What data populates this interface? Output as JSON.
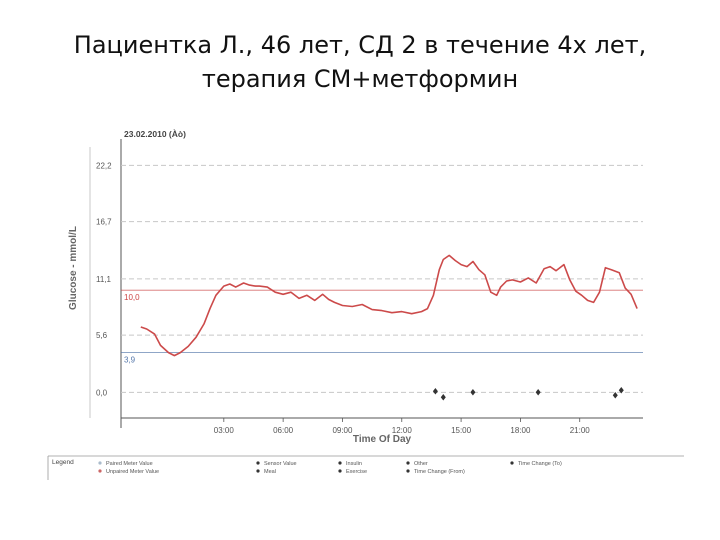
{
  "slide": {
    "title_line1": "Пациентка Л., 46 лет, СД 2  в течение 4х лет,",
    "title_line2": "терапия СМ+метформин"
  },
  "chart_data": {
    "type": "line",
    "title": "23.02.2010 (Àò)",
    "ylabel": "Glucose - mmol/L",
    "xlabel": "Time Of Day",
    "xlim": [
      -2.2,
      24.2
    ],
    "ylim": [
      -2.5,
      24.0
    ],
    "x_ticks": [
      {
        "value": 3,
        "label": "03:00"
      },
      {
        "value": 6,
        "label": "06:00"
      },
      {
        "value": 9,
        "label": "09:00"
      },
      {
        "value": 12,
        "label": "12:00"
      },
      {
        "value": 15,
        "label": "15:00"
      },
      {
        "value": 18,
        "label": "18:00"
      },
      {
        "value": 21,
        "label": "21:00"
      }
    ],
    "y_ticks": [
      {
        "value": 0,
        "label": "0,0"
      },
      {
        "value": 5.6,
        "label": "5,6"
      },
      {
        "value": 11.1,
        "label": "11,1"
      },
      {
        "value": 16.7,
        "label": "16,7"
      },
      {
        "value": 22.2,
        "label": "22,2"
      }
    ],
    "target_lines": [
      {
        "value": 10.0,
        "label": "10,0",
        "color": "#cc4444"
      },
      {
        "value": 3.9,
        "label": "3,9",
        "color": "#5577aa"
      }
    ],
    "series": [
      {
        "color": "#cc4a4a",
        "x": [
          -1.2,
          -0.9,
          -0.5,
          -0.2,
          0.2,
          0.5,
          0.8,
          1.2,
          1.6,
          2.0,
          2.3,
          2.6,
          3.0,
          3.3,
          3.6,
          4.0,
          4.3,
          4.6,
          4.8,
          5.2,
          5.6,
          6.0,
          6.4,
          6.8,
          7.2,
          7.6,
          8.0,
          8.3,
          8.6,
          9.0,
          9.5,
          10.0,
          10.5,
          11.0,
          11.5,
          12.0,
          12.5,
          13.0,
          13.3,
          13.6,
          13.9,
          14.1,
          14.4,
          14.7,
          15.0,
          15.3,
          15.6,
          15.9,
          16.2,
          16.5,
          16.8,
          17.0,
          17.3,
          17.6,
          18.0,
          18.4,
          18.8,
          19.2,
          19.5,
          19.8,
          20.2,
          20.5,
          20.8,
          21.1,
          21.4,
          21.7,
          22.0,
          22.3,
          22.6,
          23.0,
          23.3,
          23.6,
          23.9
        ],
        "y": [
          6.4,
          6.2,
          5.7,
          4.6,
          3.9,
          3.6,
          3.9,
          4.5,
          5.4,
          6.7,
          8.2,
          9.5,
          10.4,
          10.6,
          10.3,
          10.7,
          10.5,
          10.4,
          10.4,
          10.3,
          9.8,
          9.6,
          9.8,
          9.2,
          9.5,
          9.0,
          9.6,
          9.1,
          8.8,
          8.5,
          8.4,
          8.6,
          8.1,
          8.0,
          7.8,
          7.9,
          7.7,
          7.9,
          8.2,
          9.5,
          12.0,
          13.0,
          13.4,
          12.9,
          12.5,
          12.3,
          12.8,
          12.0,
          11.5,
          9.8,
          9.5,
          10.3,
          10.9,
          11.0,
          10.8,
          11.2,
          10.7,
          12.1,
          12.3,
          11.9,
          12.5,
          11.0,
          9.9,
          9.5,
          9.0,
          8.8,
          9.8,
          12.2,
          12.0,
          11.7,
          10.2,
          9.6,
          8.2
        ]
      }
    ],
    "event_markers": [
      {
        "x": 13.7,
        "y": -0.2,
        "symbol": "♦"
      },
      {
        "x": 14.1,
        "y": -0.8,
        "symbol": "♦"
      },
      {
        "x": 15.6,
        "y": -0.3,
        "symbol": "♦"
      },
      {
        "x": 18.9,
        "y": -0.3,
        "symbol": "♦"
      },
      {
        "x": 22.8,
        "y": -0.6,
        "symbol": "♦"
      },
      {
        "x": 23.1,
        "y": -0.1,
        "symbol": "♦"
      }
    ],
    "legend": {
      "heading": "Legend",
      "entries": [
        {
          "label": "Paired Meter Value",
          "marker_color": "#aabbcc"
        },
        {
          "label": "Unpaired Meter Value",
          "marker_color": "#cc6666"
        },
        {
          "label": "Sensor Value",
          "marker_color": "#333333"
        },
        {
          "label": "Meal",
          "marker_color": "#333333"
        },
        {
          "label": "Insulin",
          "marker_color": "#333333"
        },
        {
          "label": "Exercise",
          "marker_color": "#333333"
        },
        {
          "label": "Other",
          "marker_color": "#333333"
        },
        {
          "label": "Time Change (From)",
          "marker_color": "#333333"
        },
        {
          "label": "Time Change (To)",
          "marker_color": "#333333"
        }
      ]
    }
  }
}
